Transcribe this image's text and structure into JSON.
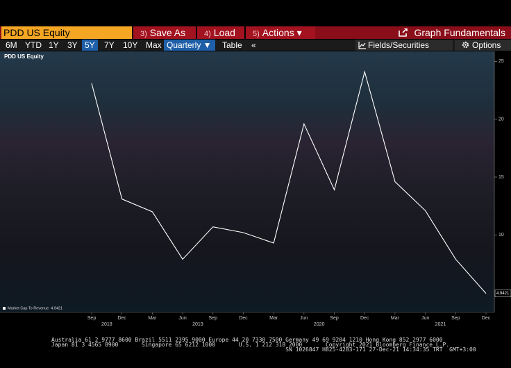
{
  "toolbar": {
    "security": "PDD US Equity",
    "buttons": [
      {
        "key": "3)",
        "label": "Save As"
      },
      {
        "key": "4)",
        "label": "Load"
      },
      {
        "key": "5)",
        "label": "Actions ▾"
      }
    ],
    "title": "Graph Fundamentals"
  },
  "range_bar": {
    "ranges": [
      "6M",
      "YTD",
      "1Y",
      "3Y",
      "5Y",
      "7Y",
      "10Y",
      "Max"
    ],
    "selected": "5Y",
    "period": "Quarterly ▼",
    "table": "Table",
    "collapse": "«",
    "fields": "Fields/Securities",
    "options": "Options"
  },
  "chart_data": {
    "type": "line",
    "title": "PDD US Equity",
    "categories": [
      "Sep",
      "Dec",
      "Mar",
      "Jun",
      "Sep",
      "Dec",
      "Mar",
      "Jun",
      "Sep",
      "Dec",
      "Mar",
      "Jun",
      "Sep",
      "Dec"
    ],
    "x_groups": [
      {
        "label": "2018",
        "span": [
          0,
          1
        ]
      },
      {
        "label": "2019",
        "span": [
          2,
          5
        ]
      },
      {
        "label": "2020",
        "span": [
          6,
          9
        ]
      },
      {
        "label": "2021",
        "span": [
          10,
          13
        ]
      }
    ],
    "series": [
      {
        "name": "Market Cap To Revenue",
        "color": "#ffffff",
        "values": [
          23.1,
          13.1,
          12.0,
          7.9,
          10.7,
          10.2,
          9.3,
          19.6,
          13.9,
          24.1,
          14.6,
          12.1,
          7.9,
          4.9421
        ]
      }
    ],
    "ylim": [
      3.3,
      25.5
    ],
    "yticks": [
      10,
      15,
      20,
      25
    ],
    "y_axis_side": "right",
    "grid": false
  },
  "footer": {
    "lines": [
      "Australia 61 2 9777 8600 Brazil 5511 2395 9000 Europe 44 20 7330 7500 Germany 49 69 9204 1210 Hong Kong 852 2977 6000",
      "Japan 81 3 4565 8900       Singapore 65 6212 1000       U.S. 1 212 318 2000       Copyright 2021 Bloomberg Finance L.P.",
      "                                                                      SN 1026847 H825-4283-171 27-Dec-21 14:34:35 TRT  GMT+3:00"
    ]
  }
}
